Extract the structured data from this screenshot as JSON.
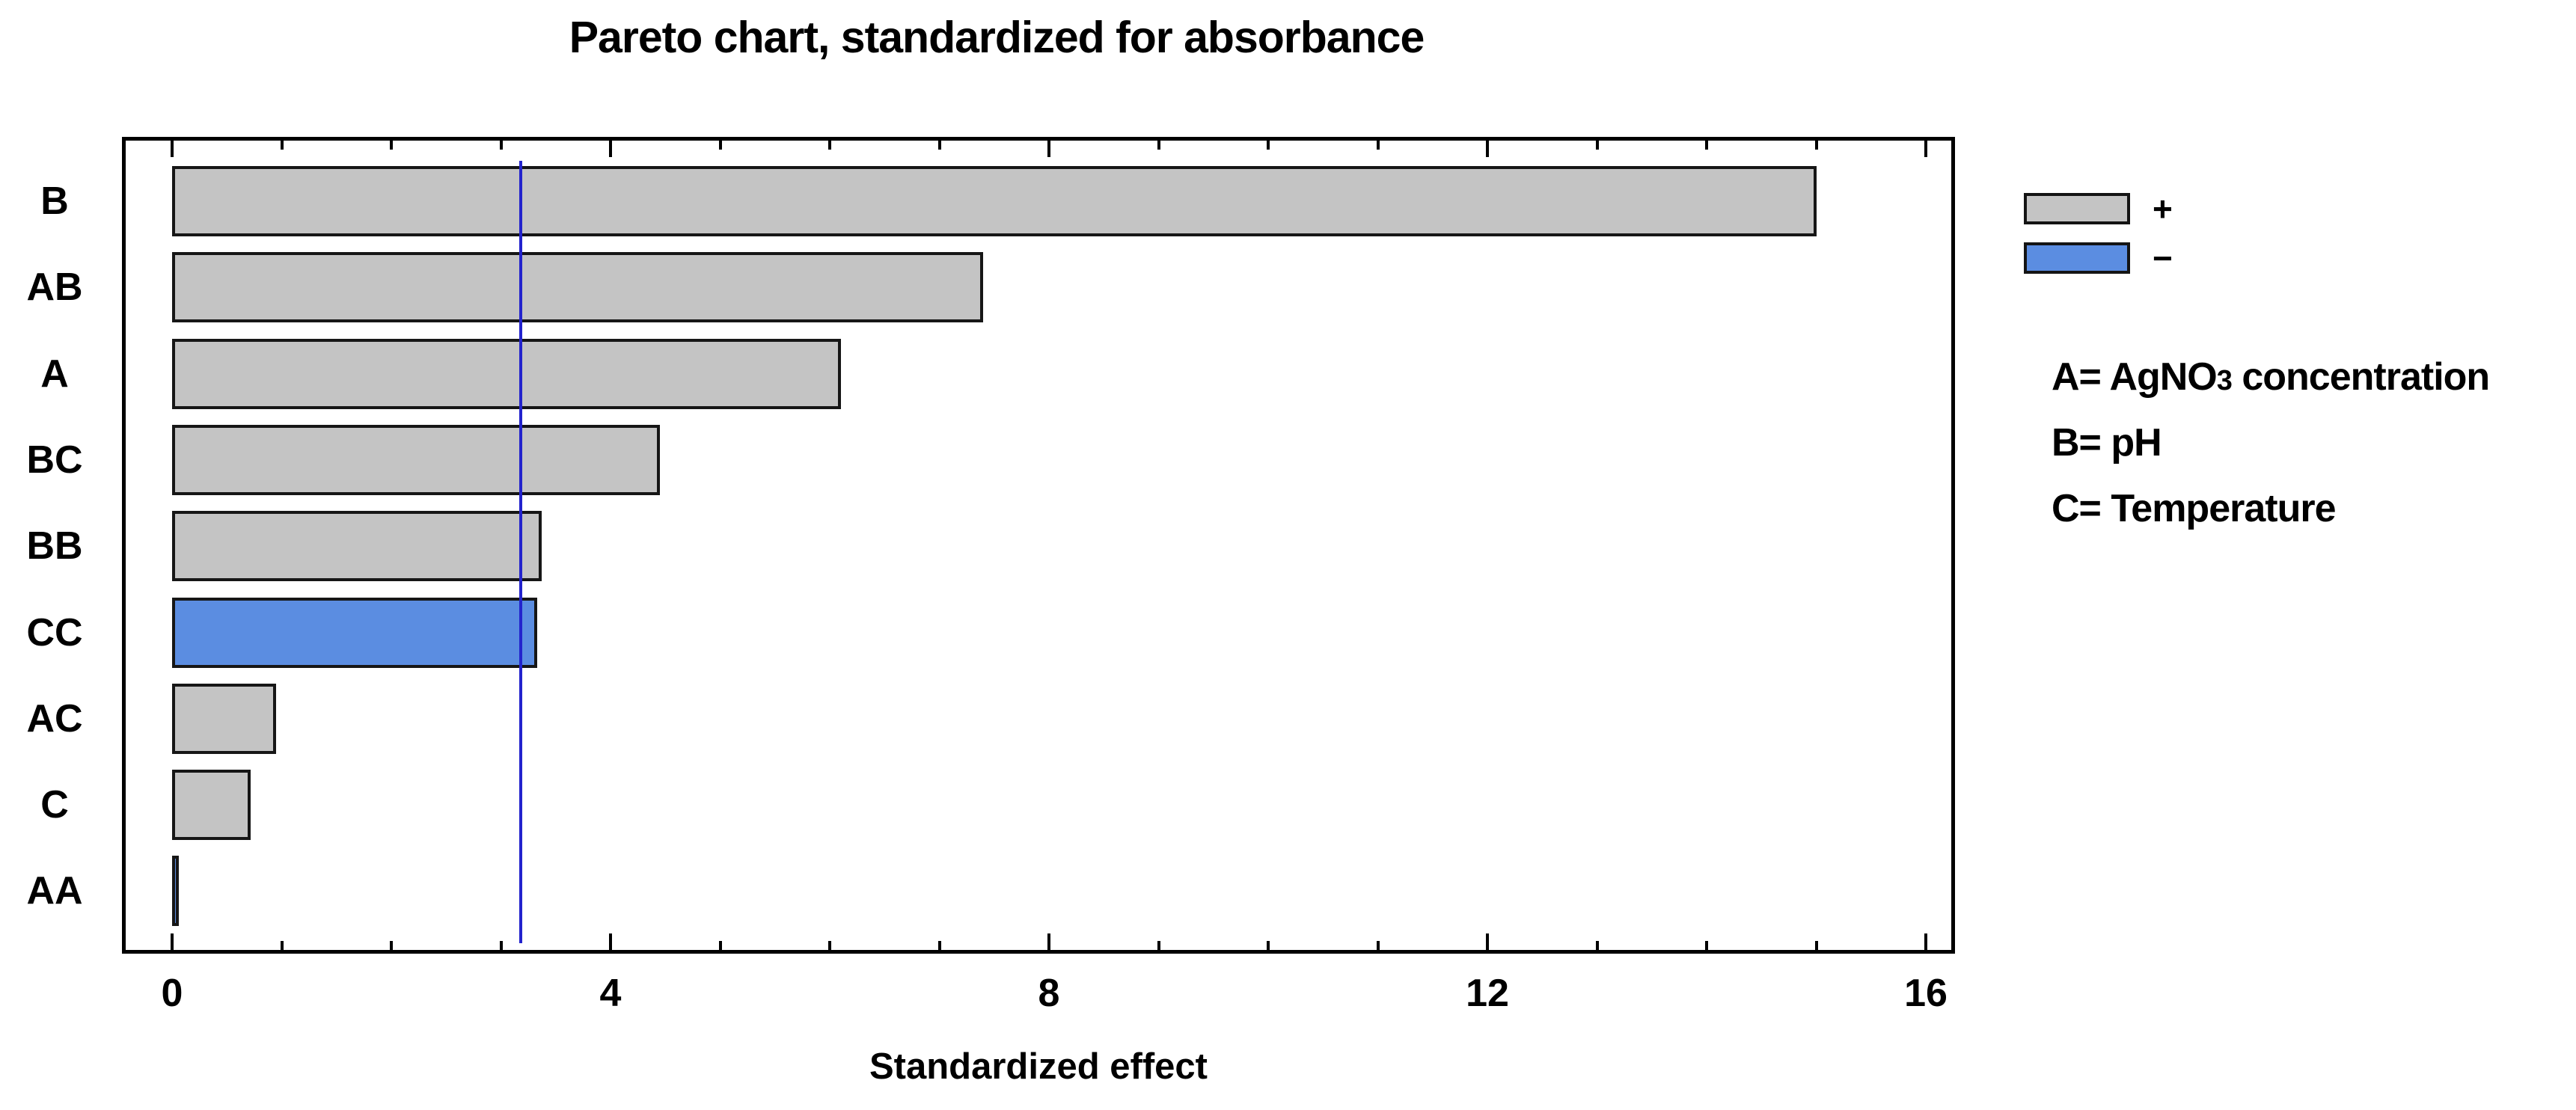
{
  "chart_data": {
    "type": "bar",
    "orientation": "horizontal",
    "title": "Pareto chart, standardized for absorbance",
    "xlabel": "Standardized effect",
    "ylabel": "",
    "categories": [
      "B",
      "AB",
      "A",
      "BC",
      "BB",
      "CC",
      "AC",
      "C",
      "AA"
    ],
    "values": [
      15.0,
      7.4,
      6.1,
      4.45,
      3.37,
      3.33,
      0.95,
      0.72,
      0.06
    ],
    "signs": [
      "+",
      "+",
      "+",
      "+",
      "+",
      "-",
      "+",
      "+",
      "-"
    ],
    "xlim": [
      -0.45,
      16.3
    ],
    "x_major_ticks": [
      0,
      4,
      8,
      12,
      16
    ],
    "x_minor_tick_step": 1,
    "x_axis_max_tick": 16,
    "critical_line_x": 3.18,
    "grid": "off",
    "legend_position": "top-right"
  },
  "legend": {
    "items": [
      {
        "name": "positive-effect",
        "label": "+",
        "color": "#c4c4c4"
      },
      {
        "name": "negative-effect",
        "label": "−",
        "color": "#5b8de1"
      }
    ]
  },
  "factor_key": {
    "a_prefix": "A= AgNO",
    "a_subscript": "3",
    "a_suffix": " concentration",
    "b": "B= pH",
    "c": "C= Temperature"
  },
  "colors": {
    "bar_positive": "#c4c4c4",
    "bar_negative": "#5b8de1",
    "bar_border": "#161616",
    "critical_line": "#2323cd",
    "frame": "#000000",
    "background": "#ffffff",
    "text": "#000000"
  }
}
